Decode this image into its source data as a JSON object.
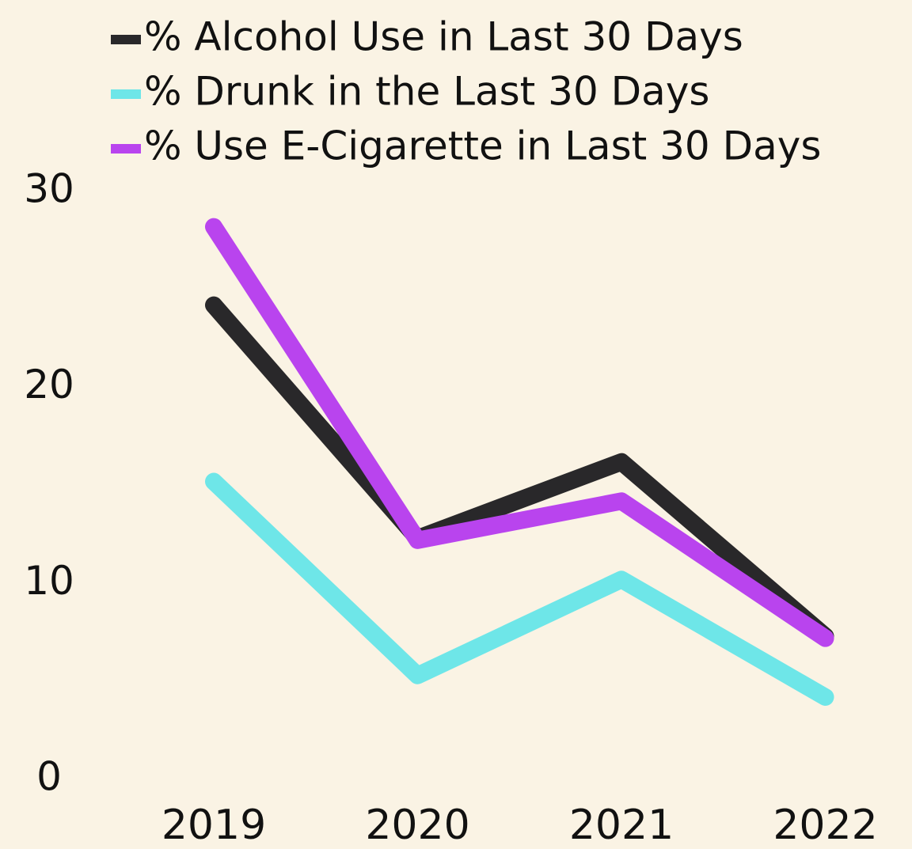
{
  "chart_data": {
    "type": "line",
    "categories": [
      "2019",
      "2020",
      "2021",
      "2022"
    ],
    "series": [
      {
        "name": "% Alcohol Use in Last 30 Days",
        "color": "#29282a",
        "values": [
          24.2,
          12.3,
          16.2,
          7.3
        ]
      },
      {
        "name": "% Drunk in the Last 30 Days",
        "color": "#6ee6e8",
        "values": [
          15.2,
          5.3,
          10.2,
          4.2
        ]
      },
      {
        "name": "% Use E-Cigarette in Last 30 Days",
        "color": "#b944ee",
        "values": [
          28.2,
          12.2,
          14.2,
          7.2
        ]
      }
    ],
    "ylim": [
      0,
      30
    ],
    "yticks": [
      0,
      10,
      20,
      30
    ],
    "grid": false,
    "legend": "top-left"
  }
}
